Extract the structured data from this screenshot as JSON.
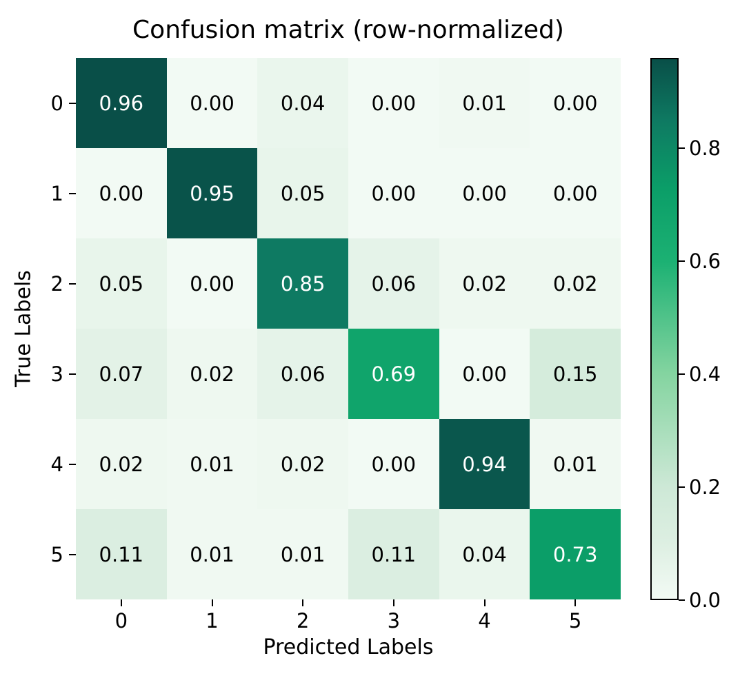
{
  "chart_data": {
    "type": "heatmap",
    "title": "Confusion matrix (row-normalized)",
    "xlabel": "Predicted Labels",
    "ylabel": "True Labels",
    "x_categories": [
      "0",
      "1",
      "2",
      "3",
      "4",
      "5"
    ],
    "y_categories": [
      "0",
      "1",
      "2",
      "3",
      "4",
      "5"
    ],
    "matrix": [
      [
        0.96,
        0.0,
        0.04,
        0.0,
        0.01,
        0.0
      ],
      [
        0.0,
        0.95,
        0.05,
        0.0,
        0.0,
        0.0
      ],
      [
        0.05,
        0.0,
        0.85,
        0.06,
        0.02,
        0.02
      ],
      [
        0.07,
        0.02,
        0.06,
        0.69,
        0.0,
        0.15
      ],
      [
        0.02,
        0.01,
        0.02,
        0.0,
        0.94,
        0.01
      ],
      [
        0.11,
        0.01,
        0.01,
        0.11,
        0.04,
        0.73
      ]
    ],
    "value_decimals": 2,
    "vmin": 0.0,
    "vmax": 0.96,
    "grid": false,
    "colorbar_position": "right",
    "colorbar_ticks": [
      {
        "label": "0.0",
        "value": 0.0
      },
      {
        "label": "0.2",
        "value": 0.2
      },
      {
        "label": "0.4",
        "value": 0.4
      },
      {
        "label": "0.6",
        "value": 0.6
      },
      {
        "label": "0.8",
        "value": 0.8
      }
    ],
    "colormap_stops": [
      {
        "value": 0.0,
        "color": "#f2faf4"
      },
      {
        "value": 0.1,
        "color": "#ddefe2"
      },
      {
        "value": 0.2,
        "color": "#cde8d6"
      },
      {
        "value": 0.4,
        "color": "#84d4a0"
      },
      {
        "value": 0.6,
        "color": "#1cb173"
      },
      {
        "value": 0.73,
        "color": "#0b9e68"
      },
      {
        "value": 0.85,
        "color": "#0e7a62"
      },
      {
        "value": 0.96,
        "color": "#094f48"
      }
    ],
    "cell_text_color_light": "#ffffff",
    "cell_text_color_dark": "#000000",
    "text_color_threshold": 0.48
  }
}
